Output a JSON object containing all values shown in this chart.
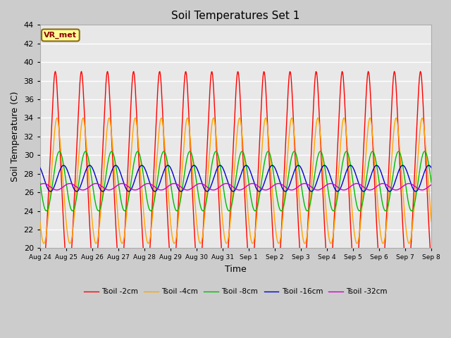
{
  "title": "Soil Temperatures Set 1",
  "xlabel": "Time",
  "ylabel": "Soil Temperature (C)",
  "ylim": [
    20,
    44
  ],
  "yticks": [
    20,
    22,
    24,
    26,
    28,
    30,
    32,
    34,
    36,
    38,
    40,
    42,
    44
  ],
  "x_labels": [
    "Aug 24",
    "Aug 25",
    "Aug 26",
    "Aug 27",
    "Aug 28",
    "Aug 29",
    "Aug 30",
    "Aug 31",
    "Sep 1",
    "Sep 2",
    "Sep 3",
    "Sep 4",
    "Sep 5",
    "Sep 6",
    "Sep 7",
    "Sep 8"
  ],
  "annotation_text": "VR_met",
  "annotation_color": "#8B0000",
  "annotation_bg": "#FFFF99",
  "colors": {
    "Tsoil -2cm": "#FF0000",
    "Tsoil -4cm": "#FFA500",
    "Tsoil -8cm": "#00BB00",
    "Tsoil -16cm": "#0000CC",
    "Tsoil -32cm": "#CC00CC"
  },
  "bg_color": "#E8E8E8",
  "grid_color": "#FFFFFF",
  "n_days": 15,
  "points_per_day": 48
}
